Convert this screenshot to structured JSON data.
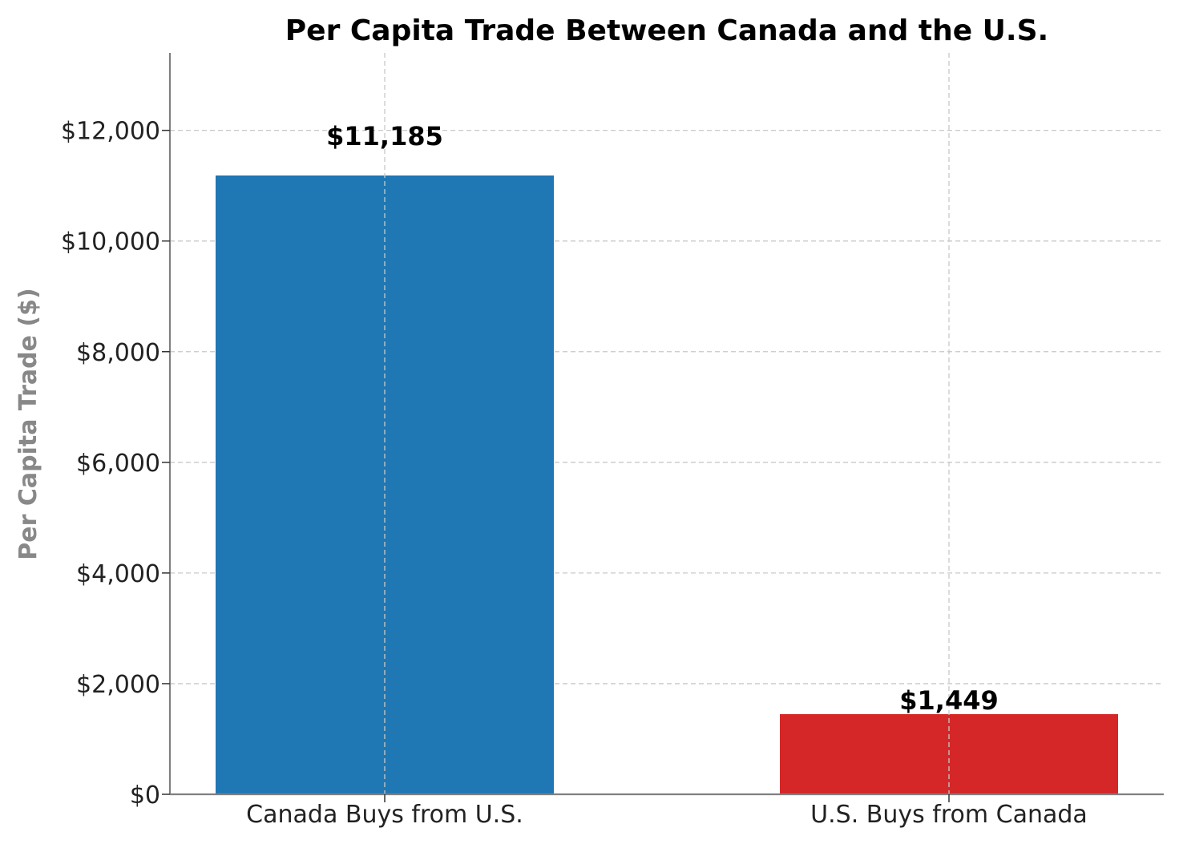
{
  "chart_data": {
    "type": "bar",
    "title": "Per Capita Trade Between Canada and the U.S.",
    "xlabel": "",
    "ylabel": "Per Capita Trade ($)",
    "categories": [
      "Canada Buys from U.S.",
      "U.S. Buys from Canada"
    ],
    "values": [
      11185,
      1449
    ],
    "data_labels": [
      "$11,185",
      "$1,449"
    ],
    "colors": [
      "#1f77b4",
      "#d62728"
    ],
    "ylim": [
      0,
      13400
    ],
    "yticks": [
      0,
      2000,
      4000,
      6000,
      8000,
      10000,
      12000
    ],
    "ytick_labels": [
      "$0",
      "$2,000",
      "$4,000",
      "$6,000",
      "$8,000",
      "$10,000",
      "$12,000"
    ],
    "grid": true
  }
}
